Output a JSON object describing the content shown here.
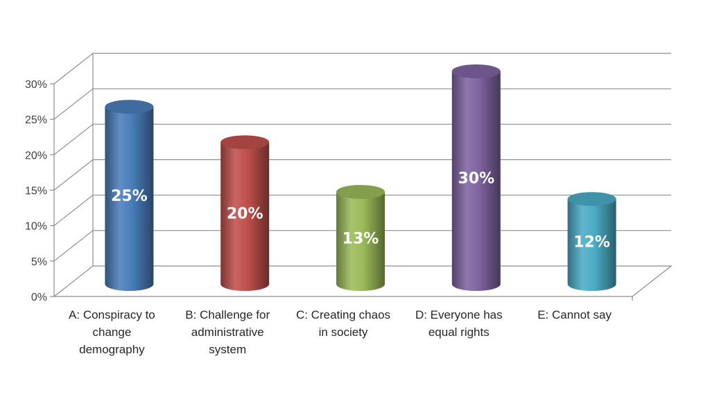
{
  "chart_data": {
    "type": "bar",
    "style": "3d-cylinder",
    "title": "",
    "xlabel": "",
    "ylabel": "",
    "ylim": [
      0,
      30
    ],
    "ytick_step": 5,
    "ytick_labels": [
      "0%",
      "5%",
      "10%",
      "15%",
      "20%",
      "25%",
      "30%"
    ],
    "grid": true,
    "legend": "none",
    "categories": [
      [
        "A: Conspiracy to",
        "change",
        "demography"
      ],
      [
        "B: Challenge for",
        "administrative",
        "system"
      ],
      [
        "C: Creating chaos",
        "in society"
      ],
      [
        "D: Everyone has",
        "equal rights"
      ],
      [
        "E: Cannot say"
      ]
    ],
    "values": [
      25,
      20,
      13,
      30,
      12
    ],
    "data_labels": [
      "25%",
      "20%",
      "13%",
      "30%",
      "12%"
    ],
    "colors": [
      "#4a7ebb",
      "#c0504d",
      "#9bbb59",
      "#8064a2",
      "#4bacc6"
    ]
  }
}
